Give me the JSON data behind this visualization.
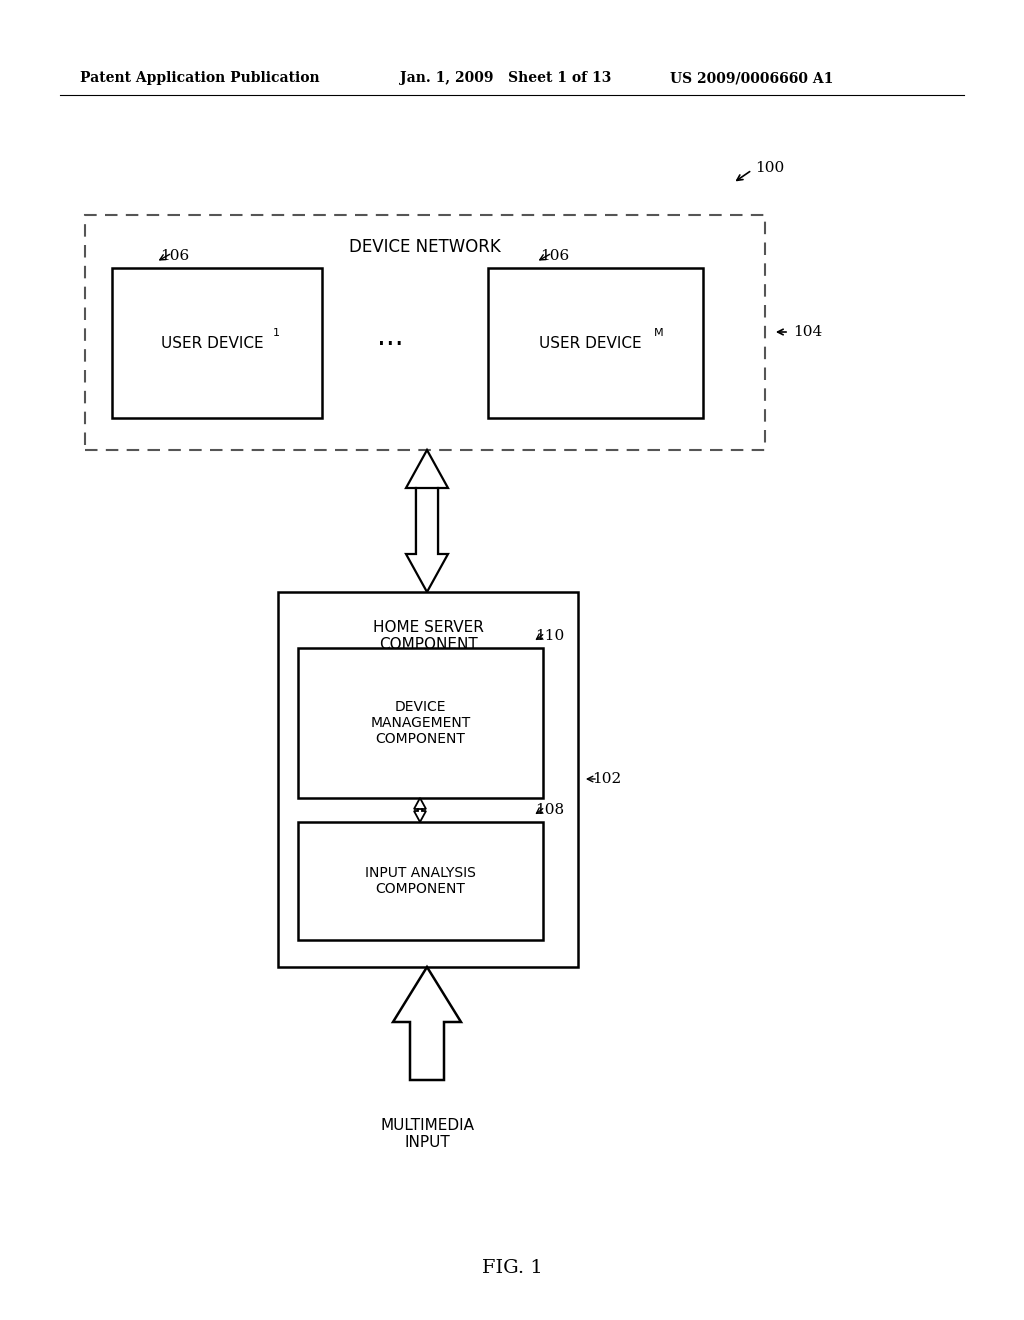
{
  "bg_color": "#ffffff",
  "header_left": "Patent Application Publication",
  "header_mid": "Jan. 1, 2009   Sheet 1 of 13",
  "header_right": "US 2009/0006660 A1",
  "fig_label": "FIG. 1",
  "ref_100": "100",
  "ref_104": "104",
  "ref_106a": "106",
  "ref_106b": "106",
  "ref_102": "102",
  "ref_110": "110",
  "ref_108": "108",
  "label_device_network": "DEVICE NETWORK",
  "label_user_device1": "USER DEVICE",
  "label_user_device1_sub": "1",
  "label_user_devicem": "USER DEVICE",
  "label_user_devicem_sub": "M",
  "label_ellipsis": "...",
  "label_home_server": "HOME SERVER\nCOMPONENT",
  "label_device_mgmt": "DEVICE\nMANAGEMENT\nCOMPONENT",
  "label_input_analysis": "INPUT ANALYSIS\nCOMPONENT",
  "label_multimedia": "MULTIMEDIA\nINPUT",
  "font_color": "#000000",
  "line_color": "#000000",
  "dashed_color": "#555555"
}
